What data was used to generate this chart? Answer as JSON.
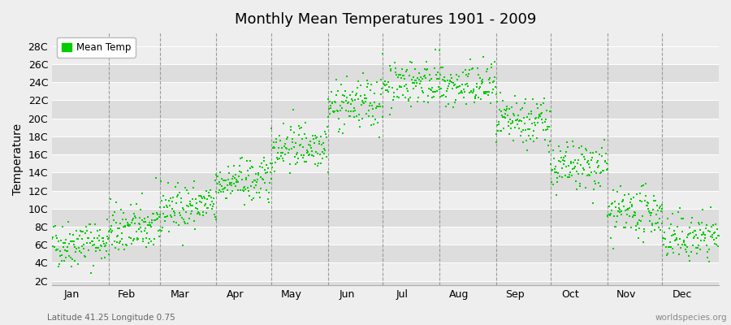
{
  "title": "Monthly Mean Temperatures 1901 - 2009",
  "ylabel": "Temperature",
  "xlabel_bottom_left": "Latitude 41.25 Longitude 0.75",
  "xlabel_bottom_right": "worldspecies.org",
  "legend_label": "Mean Temp",
  "dot_color": "#00cc00",
  "background_color": "#eeeeee",
  "row_bg_colors": [
    "#dddddd",
    "#eeeeee"
  ],
  "ytick_labels": [
    "2C",
    "4C",
    "6C",
    "8C",
    "10C",
    "12C",
    "14C",
    "16C",
    "18C",
    "20C",
    "22C",
    "24C",
    "26C",
    "28C"
  ],
  "ytick_values": [
    2,
    4,
    6,
    8,
    10,
    12,
    14,
    16,
    18,
    20,
    22,
    24,
    26,
    28
  ],
  "ylim": [
    1.5,
    29.5
  ],
  "months": [
    "Jan",
    "Feb",
    "Mar",
    "Apr",
    "May",
    "Jun",
    "Jul",
    "Aug",
    "Sep",
    "Oct",
    "Nov",
    "Dec"
  ],
  "num_years": 109,
  "mean_temps": [
    6.2,
    7.8,
    10.2,
    13.0,
    17.0,
    21.5,
    24.0,
    23.5,
    19.5,
    14.5,
    9.5,
    6.8
  ],
  "temp_std": [
    1.3,
    1.4,
    1.3,
    1.2,
    1.3,
    1.4,
    1.3,
    1.3,
    1.4,
    1.4,
    1.3,
    1.3
  ],
  "seed": 42
}
